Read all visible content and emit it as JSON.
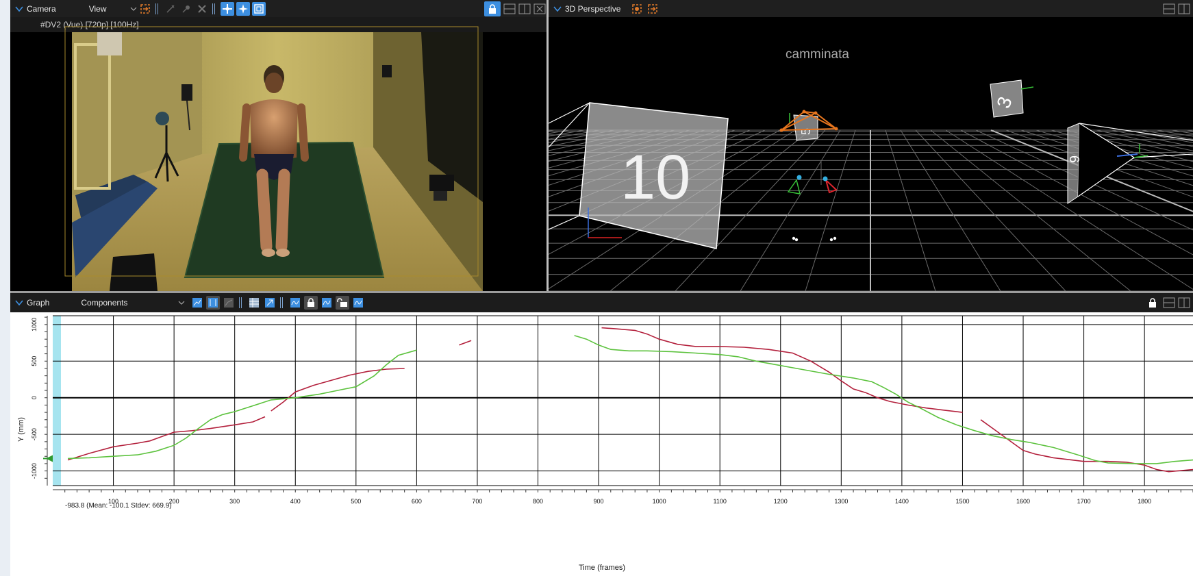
{
  "camera_panel": {
    "title": "Camera",
    "view_menu": "View",
    "camera_label": "#DV2 (Vue) [720p] [100Hz]"
  },
  "perspective_panel": {
    "title": "3D Perspective",
    "scene_label": "camminata",
    "camera_markers": [
      "10",
      "5",
      "3",
      "9"
    ]
  },
  "graph_panel": {
    "title": "Graph",
    "mode": "Components",
    "cursor_readout": "-983.8 (Mean: -100.1 Stdev: 669.9)"
  },
  "colors": {
    "accent": "#3d8fe0",
    "series_red": "#b3203c",
    "series_green": "#5cc23d",
    "cursor_band": "#a6e4ef"
  },
  "chart_data": {
    "type": "line",
    "xlabel": "Time (frames)",
    "ylabel": "Y (mm)",
    "xlim": [
      0,
      1880
    ],
    "ylim": [
      -1200,
      1120
    ],
    "x_ticks": [
      100,
      200,
      300,
      400,
      500,
      600,
      700,
      800,
      900,
      1000,
      1100,
      1200,
      1300,
      1400,
      1500,
      1600,
      1700,
      1800
    ],
    "y_ticks": [
      1000,
      500,
      0,
      -500,
      -1000
    ],
    "grid": true,
    "series": [
      {
        "color": "#b3203c",
        "segments": [
          [
            [
              25,
              -850
            ],
            [
              60,
              -760
            ],
            [
              100,
              -670
            ],
            [
              140,
              -620
            ],
            [
              160,
              -590
            ],
            [
              180,
              -530
            ],
            [
              200,
              -470
            ],
            [
              230,
              -450
            ],
            [
              260,
              -420
            ],
            [
              300,
              -370
            ],
            [
              330,
              -330
            ],
            [
              350,
              -260
            ]
          ],
          [
            [
              360,
              -180
            ],
            [
              380,
              -60
            ],
            [
              400,
              80
            ],
            [
              430,
              170
            ],
            [
              460,
              240
            ],
            [
              490,
              310
            ],
            [
              520,
              360
            ],
            [
              550,
              390
            ],
            [
              580,
              400
            ]
          ],
          [
            [
              670,
              720
            ],
            [
              690,
              780
            ]
          ],
          [
            [
              905,
              955
            ],
            [
              930,
              940
            ],
            [
              960,
              920
            ],
            [
              980,
              870
            ],
            [
              1000,
              800
            ],
            [
              1030,
              730
            ],
            [
              1060,
              700
            ],
            [
              1100,
              700
            ],
            [
              1140,
              690
            ],
            [
              1180,
              660
            ],
            [
              1220,
              610
            ],
            [
              1250,
              500
            ],
            [
              1280,
              350
            ],
            [
              1300,
              230
            ],
            [
              1320,
              120
            ],
            [
              1340,
              70
            ],
            [
              1360,
              0
            ],
            [
              1380,
              -50
            ],
            [
              1410,
              -100
            ],
            [
              1440,
              -140
            ],
            [
              1470,
              -170
            ],
            [
              1500,
              -200
            ]
          ],
          [
            [
              1530,
              -300
            ],
            [
              1560,
              -480
            ],
            [
              1580,
              -600
            ],
            [
              1600,
              -720
            ],
            [
              1620,
              -770
            ],
            [
              1650,
              -820
            ],
            [
              1680,
              -850
            ],
            [
              1700,
              -870
            ],
            [
              1740,
              -870
            ],
            [
              1770,
              -880
            ],
            [
              1800,
              -920
            ],
            [
              1820,
              -980
            ],
            [
              1840,
              -1010
            ],
            [
              1880,
              -980
            ]
          ]
        ]
      },
      {
        "color": "#5cc23d",
        "segments": [
          [
            [
              25,
              -830
            ],
            [
              60,
              -820
            ],
            [
              100,
              -800
            ],
            [
              140,
              -780
            ],
            [
              170,
              -730
            ],
            [
              200,
              -650
            ],
            [
              220,
              -550
            ],
            [
              240,
              -420
            ],
            [
              260,
              -300
            ],
            [
              280,
              -230
            ],
            [
              300,
              -190
            ],
            [
              330,
              -110
            ],
            [
              360,
              -30
            ],
            [
              400,
              0
            ],
            [
              440,
              50
            ],
            [
              470,
              100
            ],
            [
              500,
              150
            ],
            [
              530,
              300
            ],
            [
              550,
              450
            ],
            [
              570,
              580
            ],
            [
              600,
              650
            ]
          ],
          [
            [
              860,
              850
            ],
            [
              880,
              800
            ],
            [
              900,
              720
            ],
            [
              920,
              660
            ],
            [
              950,
              640
            ],
            [
              980,
              640
            ],
            [
              1020,
              630
            ],
            [
              1060,
              610
            ],
            [
              1100,
              590
            ],
            [
              1130,
              560
            ],
            [
              1160,
              500
            ],
            [
              1200,
              440
            ],
            [
              1240,
              380
            ],
            [
              1280,
              320
            ],
            [
              1320,
              270
            ],
            [
              1350,
              220
            ],
            [
              1370,
              140
            ],
            [
              1390,
              50
            ],
            [
              1410,
              -60
            ],
            [
              1430,
              -140
            ],
            [
              1460,
              -270
            ],
            [
              1490,
              -370
            ],
            [
              1520,
              -450
            ],
            [
              1550,
              -520
            ],
            [
              1580,
              -570
            ],
            [
              1610,
              -610
            ],
            [
              1650,
              -680
            ],
            [
              1690,
              -780
            ],
            [
              1720,
              -860
            ],
            [
              1740,
              -890
            ],
            [
              1780,
              -900
            ],
            [
              1820,
              -900
            ],
            [
              1850,
              -870
            ],
            [
              1880,
              -850
            ]
          ]
        ]
      }
    ]
  }
}
